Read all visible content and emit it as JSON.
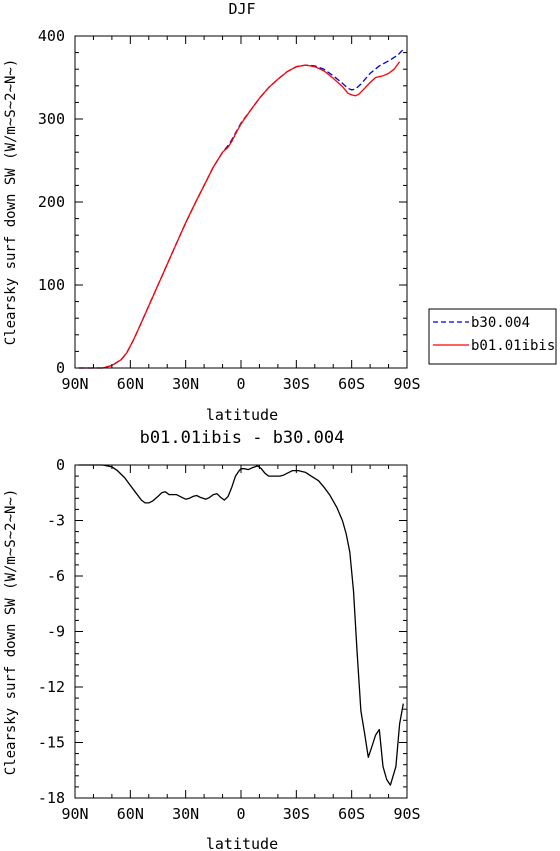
{
  "chart_data": [
    {
      "type": "line",
      "title": "DJF",
      "xlabel": "latitude",
      "ylabel": "Clearsky surf down SW (W/m~S~2~N~)",
      "xlim": [
        -90,
        90
      ],
      "ylim": [
        0,
        400
      ],
      "x_ticks": [
        -90,
        -60,
        -30,
        0,
        30,
        60,
        90
      ],
      "x_tick_labels": [
        "90N",
        "60N",
        "30N",
        "0",
        "30S",
        "60S",
        "90S"
      ],
      "y_ticks": [
        0,
        100,
        200,
        300,
        400
      ],
      "y_tick_labels": [
        "0",
        "100",
        "200",
        "300",
        "400"
      ],
      "legend_position": "right",
      "series": [
        {
          "name": "b30.004",
          "color": "#0000cc",
          "dash": "dashed",
          "points": [
            [
              -88,
              0
            ],
            [
              -80,
              0
            ],
            [
              -75,
              0
            ],
            [
              -70,
              3
            ],
            [
              -65,
              10
            ],
            [
              -62,
              18
            ],
            [
              -58,
              35
            ],
            [
              -55,
              50
            ],
            [
              -50,
              75
            ],
            [
              -45,
              100
            ],
            [
              -40,
              125
            ],
            [
              -35,
              150
            ],
            [
              -30,
              175
            ],
            [
              -25,
              198
            ],
            [
              -20,
              220
            ],
            [
              -15,
              242
            ],
            [
              -10,
              260
            ],
            [
              -7,
              268
            ],
            [
              -5,
              275
            ],
            [
              -2,
              287
            ],
            [
              0,
              295
            ],
            [
              5,
              310
            ],
            [
              10,
              325
            ],
            [
              15,
              338
            ],
            [
              20,
              348
            ],
            [
              25,
              357
            ],
            [
              30,
              363
            ],
            [
              35,
              365
            ],
            [
              40,
              364
            ],
            [
              45,
              360
            ],
            [
              50,
              352
            ],
            [
              55,
              343
            ],
            [
              58,
              337
            ],
            [
              60,
              335
            ],
            [
              62,
              336
            ],
            [
              65,
              342
            ],
            [
              70,
              355
            ],
            [
              75,
              364
            ],
            [
              80,
              370
            ],
            [
              85,
              377
            ],
            [
              88,
              384
            ]
          ]
        },
        {
          "name": "b01.01ibis",
          "color": "#ff0000",
          "dash": "solid",
          "points": [
            [
              -88,
              0
            ],
            [
              -80,
              0
            ],
            [
              -75,
              0
            ],
            [
              -70,
              3
            ],
            [
              -65,
              10
            ],
            [
              -62,
              18
            ],
            [
              -58,
              35
            ],
            [
              -55,
              50
            ],
            [
              -50,
              75
            ],
            [
              -45,
              100
            ],
            [
              -40,
              125
            ],
            [
              -35,
              150
            ],
            [
              -30,
              175
            ],
            [
              -25,
              198
            ],
            [
              -20,
              220
            ],
            [
              -15,
              242
            ],
            [
              -10,
              260
            ],
            [
              -7,
              266
            ],
            [
              -5,
              273
            ],
            [
              -2,
              286
            ],
            [
              0,
              294
            ],
            [
              5,
              310
            ],
            [
              10,
              325
            ],
            [
              15,
              338
            ],
            [
              20,
              348
            ],
            [
              25,
              357
            ],
            [
              30,
              363
            ],
            [
              35,
              365
            ],
            [
              40,
              363
            ],
            [
              45,
              358
            ],
            [
              50,
              349
            ],
            [
              55,
              339
            ],
            [
              58,
              331
            ],
            [
              60,
              329
            ],
            [
              62,
              328
            ],
            [
              64,
              330
            ],
            [
              67,
              337
            ],
            [
              70,
              344
            ],
            [
              73,
              350
            ],
            [
              77,
              352
            ],
            [
              80,
              355
            ],
            [
              83,
              360
            ],
            [
              86,
              369
            ]
          ]
        }
      ]
    },
    {
      "type": "line",
      "title": "b01.01ibis - b30.004",
      "xlabel": "latitude",
      "ylabel": "Clearsky surf down SW (W/m~S~2~N~)",
      "xlim": [
        -90,
        90
      ],
      "ylim": [
        -18,
        0
      ],
      "x_ticks": [
        -90,
        -60,
        -30,
        0,
        30,
        60,
        90
      ],
      "x_tick_labels": [
        "90N",
        "60N",
        "30N",
        "0",
        "30S",
        "60S",
        "90S"
      ],
      "y_ticks": [
        0,
        -3,
        -6,
        -9,
        -12,
        -15,
        -18
      ],
      "y_tick_labels": [
        "0",
        "-3",
        "-6",
        "-9",
        "-12",
        "-15",
        "-18"
      ],
      "series": [
        {
          "color": "#000000",
          "dash": "solid",
          "points": [
            [
              -88,
              0
            ],
            [
              -80,
              0
            ],
            [
              -75,
              0
            ],
            [
              -70,
              -0.1
            ],
            [
              -67,
              -0.3
            ],
            [
              -63,
              -0.7
            ],
            [
              -60,
              -1.1
            ],
            [
              -57,
              -1.5
            ],
            [
              -54,
              -1.9
            ],
            [
              -52,
              -2.05
            ],
            [
              -50,
              -2.05
            ],
            [
              -48,
              -1.95
            ],
            [
              -45,
              -1.7
            ],
            [
              -43,
              -1.5
            ],
            [
              -41,
              -1.45
            ],
            [
              -39,
              -1.6
            ],
            [
              -37,
              -1.6
            ],
            [
              -35,
              -1.6
            ],
            [
              -32,
              -1.75
            ],
            [
              -30,
              -1.85
            ],
            [
              -28,
              -1.8
            ],
            [
              -26,
              -1.7
            ],
            [
              -24,
              -1.65
            ],
            [
              -22,
              -1.75
            ],
            [
              -19,
              -1.85
            ],
            [
              -17,
              -1.75
            ],
            [
              -15,
              -1.6
            ],
            [
              -13,
              -1.55
            ],
            [
              -11,
              -1.75
            ],
            [
              -9,
              -1.9
            ],
            [
              -7,
              -1.7
            ],
            [
              -5,
              -1.2
            ],
            [
              -3,
              -0.6
            ],
            [
              -1,
              -0.3
            ],
            [
              0,
              -0.2
            ],
            [
              2,
              -0.2
            ],
            [
              4,
              -0.25
            ],
            [
              6,
              -0.15
            ],
            [
              9,
              -0.05
            ],
            [
              11,
              -0.2
            ],
            [
              13,
              -0.45
            ],
            [
              15,
              -0.6
            ],
            [
              18,
              -0.6
            ],
            [
              21,
              -0.6
            ],
            [
              23,
              -0.55
            ],
            [
              25,
              -0.45
            ],
            [
              28,
              -0.3
            ],
            [
              31,
              -0.3
            ],
            [
              35,
              -0.4
            ],
            [
              38,
              -0.6
            ],
            [
              42,
              -0.85
            ],
            [
              45,
              -1.2
            ],
            [
              48,
              -1.6
            ],
            [
              52,
              -2.3
            ],
            [
              55,
              -3.0
            ],
            [
              57,
              -3.7
            ],
            [
              59,
              -4.7
            ],
            [
              61,
              -6.8
            ],
            [
              63,
              -10.2
            ],
            [
              65,
              -13.3
            ],
            [
              67,
              -14.5
            ],
            [
              69,
              -15.8
            ],
            [
              71,
              -15.2
            ],
            [
              73,
              -14.6
            ],
            [
              75,
              -14.3
            ],
            [
              77,
              -16.3
            ],
            [
              79,
              -17.0
            ],
            [
              81,
              -17.3
            ],
            [
              84,
              -16.3
            ],
            [
              86,
              -14.0
            ],
            [
              88,
              -12.9
            ]
          ]
        }
      ]
    }
  ]
}
